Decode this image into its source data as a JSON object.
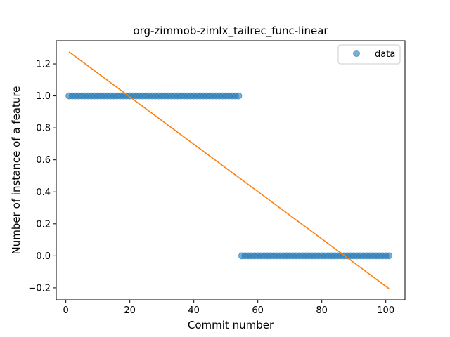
{
  "chart_data": {
    "type": "scatter",
    "title": "org-zimmob-zimlx_tailrec_func-linear",
    "xlabel": "Commit number",
    "ylabel": "Number of instance of a feature",
    "xlim": [
      -3.0,
      106.0
    ],
    "ylim": [
      -0.275,
      1.345
    ],
    "xticks": [
      0,
      20,
      40,
      60,
      80,
      100
    ],
    "xtick_labels": [
      "0",
      "20",
      "40",
      "60",
      "80",
      "100"
    ],
    "yticks": [
      -0.2,
      0.0,
      0.2,
      0.4,
      0.6,
      0.8,
      1.0,
      1.2
    ],
    "ytick_labels": [
      "−0.2",
      "0.0",
      "0.2",
      "0.4",
      "0.6",
      "0.8",
      "1.0",
      "1.2"
    ],
    "grid": false,
    "legend": {
      "position": "top-right",
      "entries": [
        "data"
      ]
    },
    "series": [
      {
        "name": "data",
        "kind": "scatter",
        "color": "#1f77b4",
        "segments": [
          {
            "x_start": 1,
            "x_end": 54,
            "y": 1.0
          },
          {
            "x_start": 55,
            "x_end": 101,
            "y": 0.0
          }
        ]
      },
      {
        "kind": "line",
        "color": "#ff7f0e",
        "points": [
          [
            1,
            1.275
          ],
          [
            101,
            -0.205
          ]
        ]
      }
    ]
  }
}
